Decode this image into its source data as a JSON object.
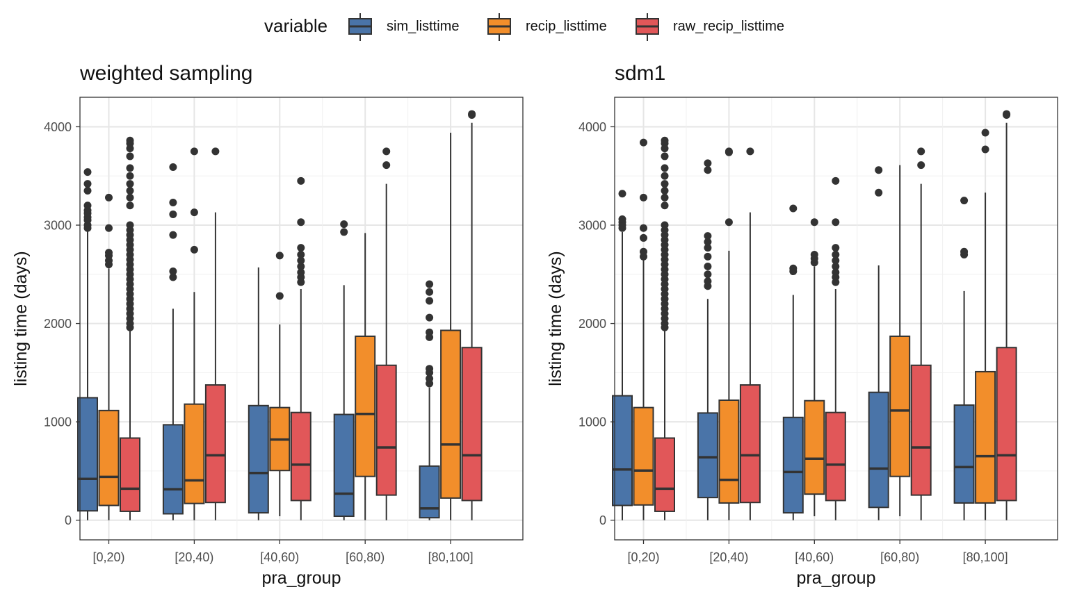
{
  "legend": {
    "title": "variable",
    "items": [
      {
        "label": "sim_listtime",
        "color": "#4A74A8"
      },
      {
        "label": "recip_listtime",
        "color": "#F28E2B"
      },
      {
        "label": "raw_recip_listtime",
        "color": "#E15759"
      }
    ]
  },
  "chart_data": [
    {
      "type": "box",
      "title": "weighted sampling",
      "xlabel": "pra_group",
      "ylabel": "listing time (days)",
      "categories": [
        "[0,20)",
        "[20,40)",
        "[40,60)",
        "[60,80)",
        "[80,100]"
      ],
      "ylim": [
        -200,
        4300
      ],
      "yticks": [
        0,
        1000,
        2000,
        3000,
        4000
      ],
      "grid": true,
      "series": [
        {
          "name": "sim_listtime",
          "boxes": [
            {
              "lower": 0,
              "q1": 95,
              "median": 420,
              "q3": 1245,
              "upper": 2960,
              "outliers": [
                2970,
                3000,
                3050,
                3080,
                3120,
                3150,
                3200,
                3350,
                3420,
                3540
              ]
            },
            {
              "lower": 0,
              "q1": 65,
              "median": 315,
              "q3": 970,
              "upper": 2150,
              "outliers": [
                2470,
                2530,
                2900,
                3110,
                3230,
                3590
              ]
            },
            {
              "lower": 0,
              "q1": 75,
              "median": 480,
              "q3": 1165,
              "upper": 2570,
              "outliers": []
            },
            {
              "lower": 0,
              "q1": 40,
              "median": 270,
              "q3": 1075,
              "upper": 2390,
              "outliers": [
                2930,
                3010
              ]
            },
            {
              "lower": 0,
              "q1": 25,
              "median": 120,
              "q3": 550,
              "upper": 1350,
              "outliers": [
                1390,
                1440,
                1500,
                1540,
                1860,
                1910,
                2060,
                2230,
                2320,
                2400
              ]
            }
          ]
        },
        {
          "name": "recip_listtime",
          "boxes": [
            {
              "lower": 0,
              "q1": 150,
              "median": 440,
              "q3": 1115,
              "upper": 2560,
              "outliers": [
                2600,
                2640,
                2690,
                2720,
                2970,
                3280
              ]
            },
            {
              "lower": 0,
              "q1": 170,
              "median": 405,
              "q3": 1180,
              "upper": 2320,
              "outliers": [
                2750,
                3130,
                3750
              ]
            },
            {
              "lower": 40,
              "q1": 505,
              "median": 820,
              "q3": 1145,
              "upper": 1990,
              "outliers": [
                2280,
                2690
              ]
            },
            {
              "lower": 0,
              "q1": 445,
              "median": 1080,
              "q3": 1870,
              "upper": 2920,
              "outliers": []
            },
            {
              "lower": 0,
              "q1": 225,
              "median": 770,
              "q3": 1930,
              "upper": 3940,
              "outliers": []
            }
          ]
        },
        {
          "name": "raw_recip_listtime",
          "boxes": [
            {
              "lower": 0,
              "q1": 90,
              "median": 320,
              "q3": 835,
              "upper": 1950,
              "outliers": [
                1960,
                2000,
                2050,
                2100,
                2150,
                2200,
                2250,
                2300,
                2350,
                2400,
                2450,
                2500,
                2550,
                2600,
                2650,
                2700,
                2750,
                2800,
                2850,
                2900,
                2950,
                3000,
                3200,
                3280,
                3350,
                3420,
                3500,
                3580,
                3700,
                3780,
                3830,
                3860
              ]
            },
            {
              "lower": 0,
              "q1": 180,
              "median": 660,
              "q3": 1375,
              "upper": 3130,
              "outliers": [
                3750
              ]
            },
            {
              "lower": 0,
              "q1": 200,
              "median": 565,
              "q3": 1095,
              "upper": 2350,
              "outliers": [
                2420,
                2470,
                2520,
                2580,
                2640,
                2700,
                2770,
                3030,
                3450
              ]
            },
            {
              "lower": 0,
              "q1": 255,
              "median": 740,
              "q3": 1575,
              "upper": 3420,
              "outliers": [
                3610,
                3750
              ]
            },
            {
              "lower": 0,
              "q1": 200,
              "median": 660,
              "q3": 1755,
              "upper": 4040,
              "outliers": [
                4120,
                4130
              ]
            }
          ]
        }
      ]
    },
    {
      "type": "box",
      "title": "sdm1",
      "xlabel": "pra_group",
      "ylabel": "listing time (days)",
      "categories": [
        "[0,20)",
        "[20,40)",
        "[40,60)",
        "[60,80)",
        "[80,100]"
      ],
      "ylim": [
        -200,
        4300
      ],
      "yticks": [
        0,
        1000,
        2000,
        3000,
        4000
      ],
      "grid": true,
      "series": [
        {
          "name": "sim_listtime",
          "boxes": [
            {
              "lower": 0,
              "q1": 150,
              "median": 515,
              "q3": 1265,
              "upper": 2930,
              "outliers": [
                2970,
                3000,
                3030,
                3060,
                3320
              ]
            },
            {
              "lower": 0,
              "q1": 230,
              "median": 640,
              "q3": 1090,
              "upper": 2250,
              "outliers": [
                2380,
                2430,
                2500,
                2580,
                2680,
                2770,
                2830,
                2890,
                3560,
                3630
              ]
            },
            {
              "lower": 0,
              "q1": 75,
              "median": 490,
              "q3": 1045,
              "upper": 2290,
              "outliers": [
                2530,
                2560,
                3170
              ]
            },
            {
              "lower": 0,
              "q1": 130,
              "median": 525,
              "q3": 1300,
              "upper": 2590,
              "outliers": [
                3330,
                3560
              ]
            },
            {
              "lower": 0,
              "q1": 175,
              "median": 540,
              "q3": 1170,
              "upper": 2330,
              "outliers": [
                2700,
                2730,
                3250
              ]
            }
          ]
        },
        {
          "name": "recip_listtime",
          "boxes": [
            {
              "lower": 0,
              "q1": 155,
              "median": 505,
              "q3": 1145,
              "upper": 2650,
              "outliers": [
                2680,
                2730,
                2870,
                2970,
                3280,
                3840
              ]
            },
            {
              "lower": 0,
              "q1": 175,
              "median": 410,
              "q3": 1220,
              "upper": 2740,
              "outliers": [
                3030,
                3740,
                3750
              ]
            },
            {
              "lower": 40,
              "q1": 265,
              "median": 625,
              "q3": 1215,
              "upper": 2580,
              "outliers": [
                2620,
                2660,
                2700,
                3030
              ]
            },
            {
              "lower": 40,
              "q1": 445,
              "median": 1115,
              "q3": 1870,
              "upper": 3610,
              "outliers": []
            },
            {
              "lower": 0,
              "q1": 175,
              "median": 650,
              "q3": 1510,
              "upper": 3330,
              "outliers": [
                3770,
                3940
              ]
            }
          ]
        },
        {
          "name": "raw_recip_listtime",
          "boxes": [
            {
              "lower": 0,
              "q1": 90,
              "median": 320,
              "q3": 835,
              "upper": 1950,
              "outliers": [
                1960,
                2000,
                2050,
                2100,
                2150,
                2200,
                2250,
                2300,
                2350,
                2400,
                2450,
                2500,
                2550,
                2600,
                2650,
                2700,
                2750,
                2800,
                2850,
                2900,
                2950,
                3000,
                3200,
                3280,
                3350,
                3420,
                3500,
                3580,
                3700,
                3780,
                3830,
                3860
              ]
            },
            {
              "lower": 0,
              "q1": 180,
              "median": 660,
              "q3": 1375,
              "upper": 3130,
              "outliers": [
                3750
              ]
            },
            {
              "lower": 0,
              "q1": 200,
              "median": 565,
              "q3": 1095,
              "upper": 2350,
              "outliers": [
                2420,
                2470,
                2520,
                2580,
                2640,
                2700,
                2770,
                3030,
                3450
              ]
            },
            {
              "lower": 0,
              "q1": 255,
              "median": 740,
              "q3": 1575,
              "upper": 3420,
              "outliers": [
                3610,
                3750
              ]
            },
            {
              "lower": 0,
              "q1": 200,
              "median": 660,
              "q3": 1755,
              "upper": 4040,
              "outliers": [
                4120,
                4130
              ]
            }
          ]
        }
      ]
    }
  ]
}
